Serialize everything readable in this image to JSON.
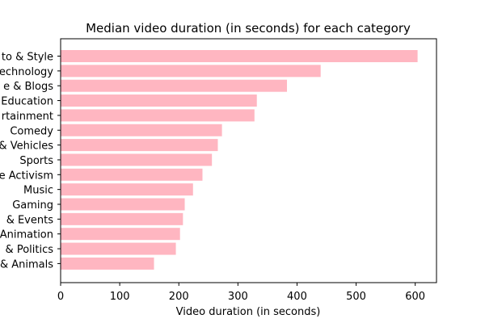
{
  "chart_data": {
    "type": "bar",
    "orientation": "horizontal",
    "title": "Median video duration (in seconds) for each category",
    "xlabel": "Video duration (in seconds)",
    "ylabel": "",
    "xlim": [
      0,
      636
    ],
    "x_ticks": [
      0,
      100,
      200,
      300,
      400,
      500,
      600
    ],
    "bar_color": "#ffb6c1",
    "grid": false,
    "legend": "none",
    "categories": [
      "to & Style",
      "echnology",
      "e & Blogs",
      "Education",
      "rtainment",
      "Comedy",
      "& Vehicles",
      "Sports",
      "e Activism",
      "Music",
      "Gaming",
      "& Events",
      "Animation",
      "& Politics",
      "& Animals"
    ],
    "values": [
      604,
      440,
      383,
      332,
      328,
      273,
      266,
      256,
      240,
      224,
      210,
      207,
      202,
      195,
      158
    ]
  }
}
